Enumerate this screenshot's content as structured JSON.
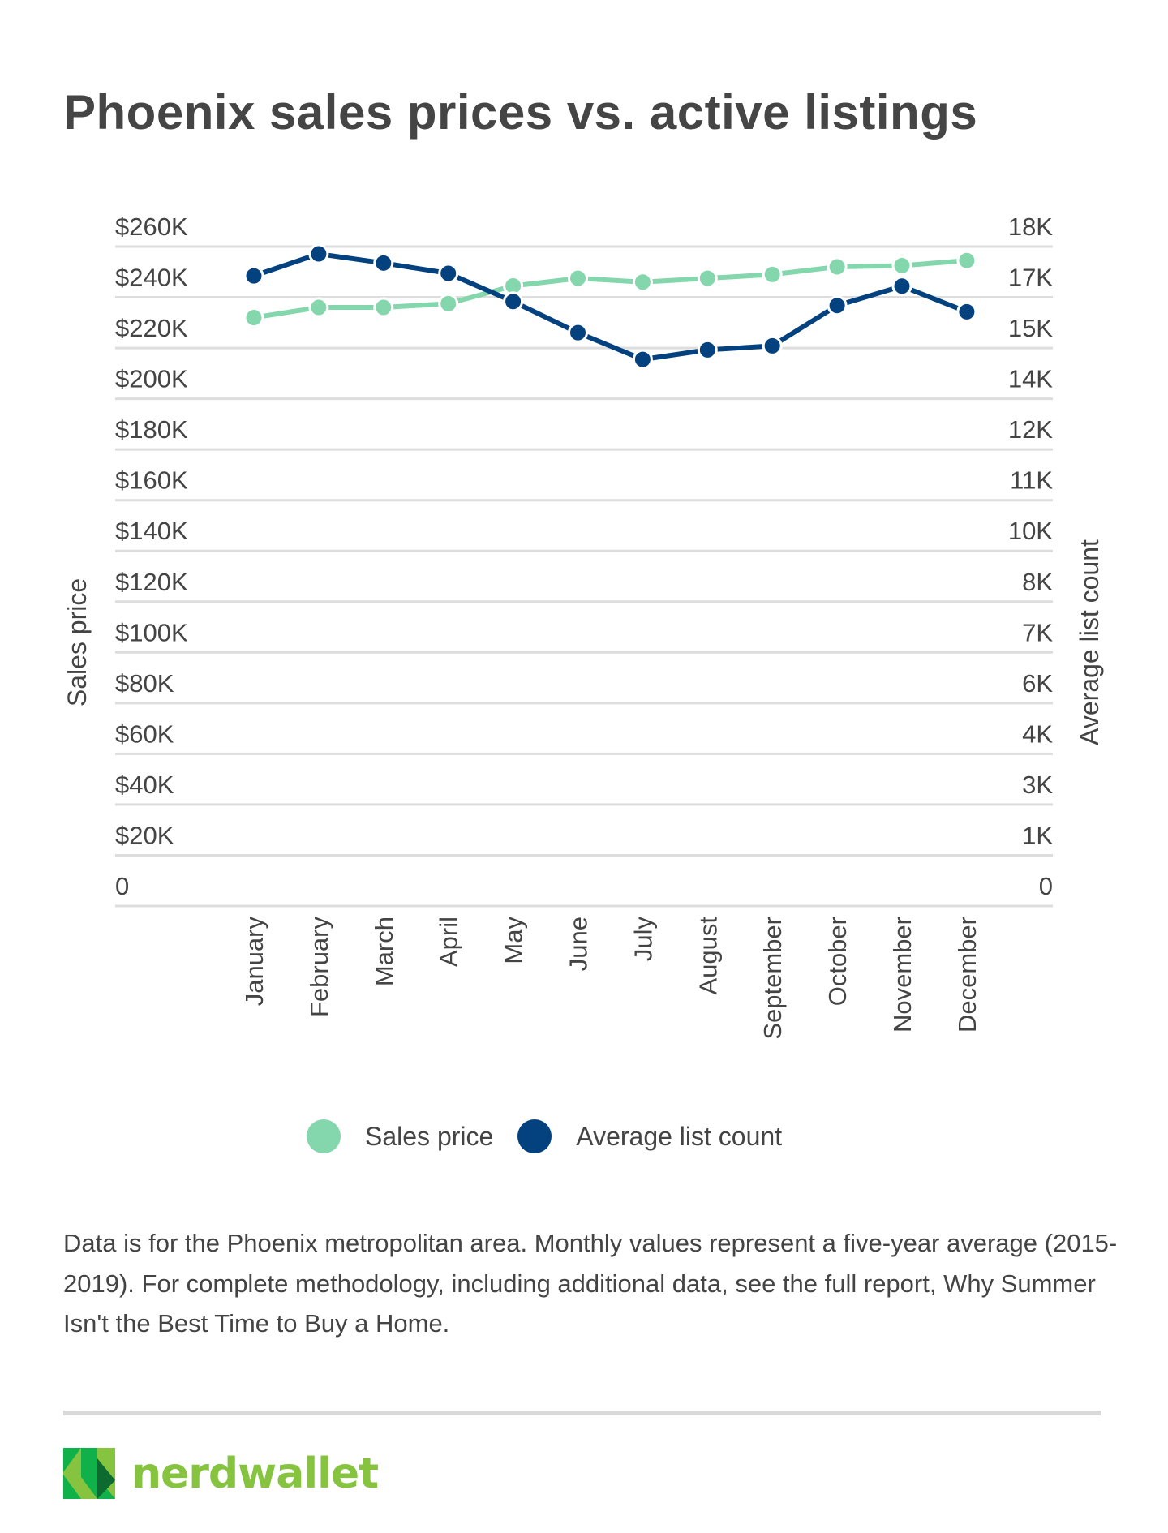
{
  "title": "Phoenix sales prices vs. active listings",
  "colors": {
    "sales_price": "#84d6ad",
    "list_count": "#03417f",
    "grid": "#dddddd",
    "text": "#444444",
    "brand_light": "#86c440",
    "brand_mid": "#10b04a",
    "brand_dark": "#0d6b2f"
  },
  "chart_data": {
    "type": "line",
    "title": "Phoenix sales prices vs. active listings",
    "xlabel": "",
    "ylabel": "Sales price",
    "y2label": "Average list count",
    "categories": [
      "January",
      "February",
      "March",
      "April",
      "May",
      "June",
      "July",
      "August",
      "September",
      "October",
      "November",
      "December"
    ],
    "ylim": [
      0,
      260000
    ],
    "y2lim": [
      0,
      18000
    ],
    "y_ticks": [
      "0",
      "$20K",
      "$40K",
      "$60K",
      "$80K",
      "$100K",
      "$120K",
      "$140K",
      "$160K",
      "$180K",
      "$200K",
      "$220K",
      "$240K",
      "$260K"
    ],
    "y2_ticks": [
      "0",
      "1K",
      "3K",
      "4K",
      "6K",
      "7K",
      "8K",
      "10K",
      "11K",
      "12K",
      "14K",
      "15K",
      "17K",
      "18K"
    ],
    "grid": true,
    "legend_position": "bottom-center",
    "series": [
      {
        "name": "Sales price",
        "axis": "left",
        "color": "#84d6ad",
        "values": [
          232000,
          236000,
          236000,
          237500,
          244500,
          247500,
          246000,
          247500,
          249000,
          252000,
          252500,
          254500
        ]
      },
      {
        "name": "Average list count",
        "axis": "right",
        "color": "#03417f",
        "values": [
          17200,
          17800,
          17550,
          17270,
          16500,
          15650,
          14920,
          15180,
          15290,
          16390,
          16920,
          16220
        ]
      }
    ]
  },
  "legend": [
    {
      "label": "Sales price"
    },
    {
      "label": "Average list count"
    }
  ],
  "note": "Data is for the Phoenix metropolitan area. Monthly values represent a five-year average (2015-2019). For complete methodology, including additional data, see the full report, Why Summer Isn't the Best Time to Buy a Home.",
  "brand": {
    "name": "nerdwallet",
    "logo_icon": "nerdwallet-n-logo-icon"
  }
}
